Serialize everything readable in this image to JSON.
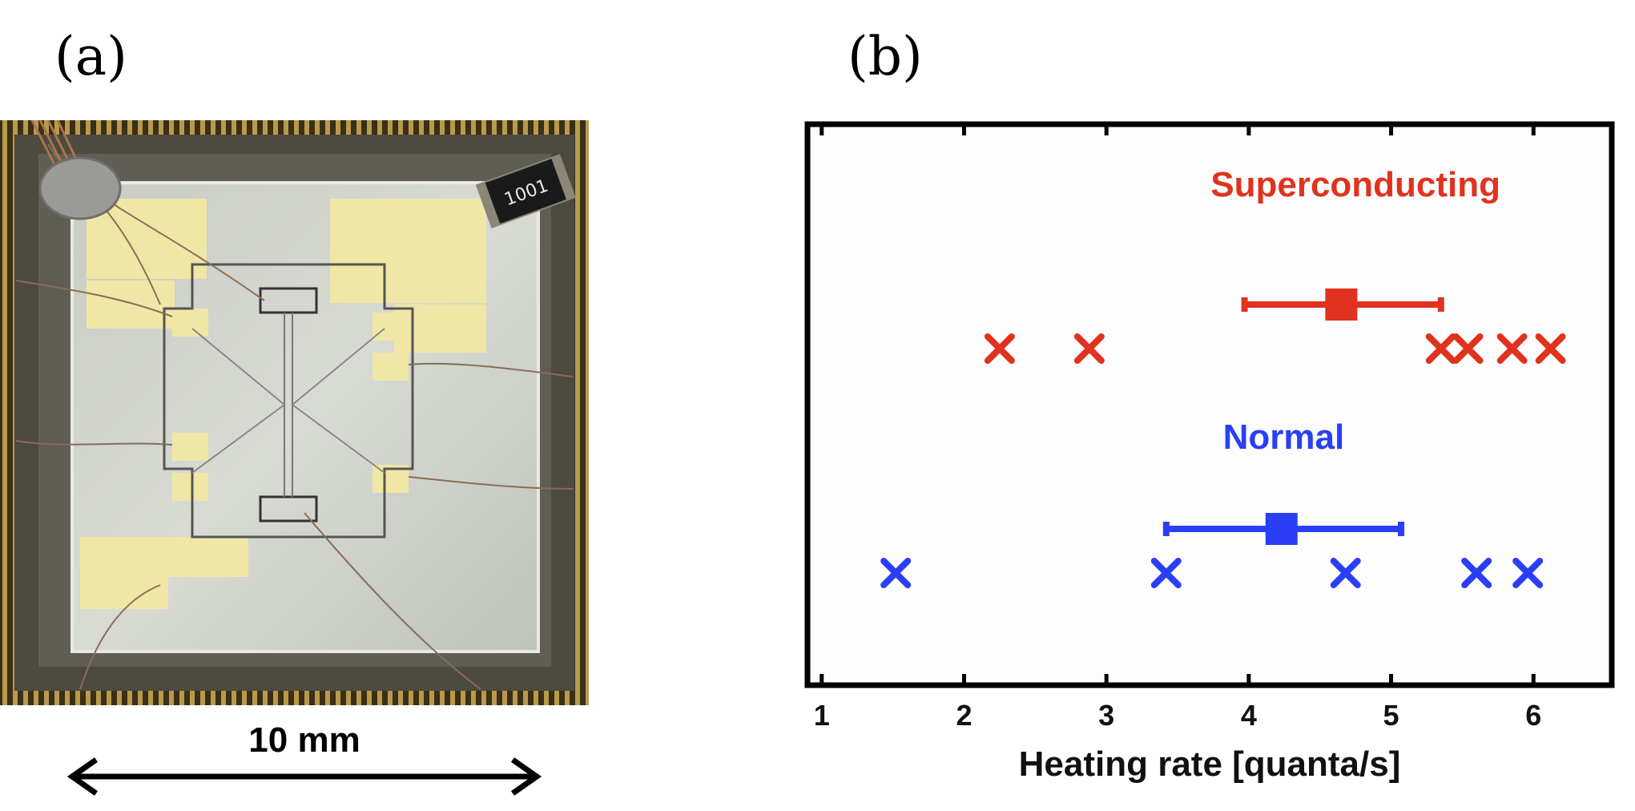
{
  "panels": {
    "a": {
      "label": "(a)",
      "photo_description": "Photograph of a square ion-trap chip mounted in a gold-pinned ceramic package with wire bonds and a surface-mount component marked 1001",
      "component_text": "1001",
      "scale_bar_label": "10 mm"
    },
    "b": {
      "label": "(b)"
    }
  },
  "chart_data": {
    "type": "scatter",
    "xlabel": "Heating rate  [quanta/s]",
    "ylabel": "",
    "xlim": [
      0.9,
      6.55
    ],
    "xticks": [
      1,
      2,
      3,
      4,
      5,
      6
    ],
    "grid": false,
    "series": [
      {
        "name": "Superconducting",
        "color": "#e0321e",
        "points": [
          2.25,
          2.88,
          5.35,
          5.54,
          5.85,
          6.12
        ],
        "mean": 4.65,
        "err_low": 3.97,
        "err_high": 5.35
      },
      {
        "name": "Normal",
        "color": "#2a3ff5",
        "points": [
          1.52,
          3.42,
          4.68,
          5.6,
          5.96
        ],
        "mean": 4.23,
        "err_low": 3.42,
        "err_high": 5.07
      }
    ]
  }
}
